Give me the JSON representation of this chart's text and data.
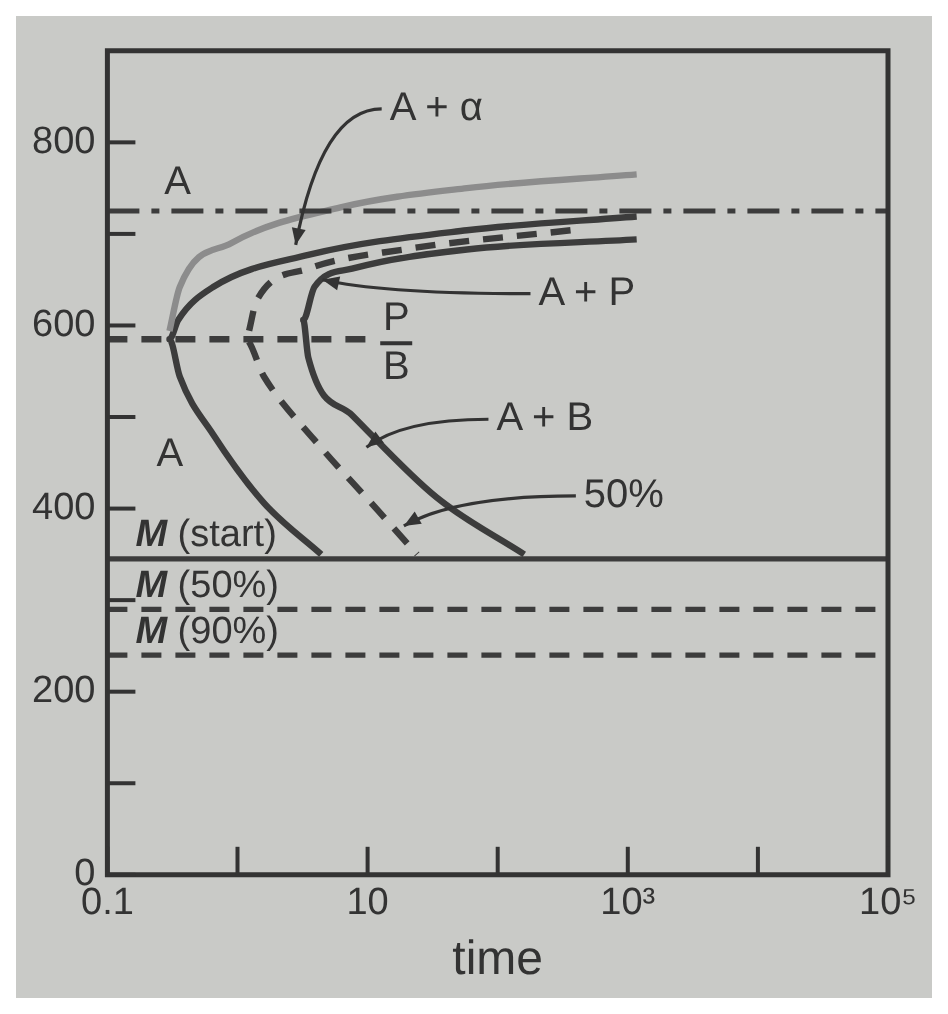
{
  "chart_data": {
    "type": "line",
    "xlabel": "time",
    "log": "x",
    "grid": false,
    "legend": false,
    "marker": "none",
    "xlim": [
      0.1,
      100000
    ],
    "ylim": [
      0,
      900
    ],
    "xticks": [
      0.1,
      {
        "value": 1,
        "label": null
      },
      10,
      {
        "value": 100,
        "label": null
      },
      {
        "value": 1000,
        "label": "10³"
      },
      {
        "value": 10000,
        "label": null
      },
      {
        "value": 100000,
        "label": "10⁵"
      }
    ],
    "yticks": [
      0,
      {
        "value": 100,
        "label": null
      },
      200,
      {
        "value": 300,
        "label": null
      },
      400,
      {
        "value": 500,
        "label": null
      },
      600,
      {
        "value": 700,
        "label": null
      },
      800
    ],
    "series": [
      {
        "color": "#8c8c8c",
        "line_style": "solid",
        "x": [
          0.3,
          0.36,
          0.9,
          6.2,
          58,
          1170
        ],
        "values": [
          594,
          642,
          690,
          729,
          750,
          765
        ]
      },
      {
        "color": "#3c3c3c",
        "line_style": "solid",
        "x": [
          1170,
          58,
          3.5,
          0.65,
          0.35,
          0.3,
          0.36,
          0.65,
          1.6,
          4.4
        ],
        "values": [
          719,
          704,
          677,
          642,
          606,
          585,
          544,
          481,
          406,
          350
        ]
      },
      {
        "color": "#3c3c3c",
        "line_style": "dashed",
        "x": [
          363,
          19,
          3.5,
          1.4,
          1.15,
          1.6,
          3.9,
          12,
          24
        ],
        "values": [
          704,
          683,
          662,
          627,
          585,
          544,
          475,
          398,
          350
        ]
      },
      {
        "color": "#3c3c3c",
        "line_style": "solid",
        "x": [
          1170,
          58,
          7.6,
          3.9,
          3.2,
          3.5,
          7.6,
          34,
          160
        ],
        "values": [
          694,
          683,
          662,
          642,
          606,
          565,
          502,
          412,
          350
        ]
      },
      {
        "color": "#3c3c3c",
        "line_style": "dashed",
        "x": [
          0.1,
          10
        ],
        "values": [
          585,
          585
        ]
      }
    ],
    "ref_lines": [
      {
        "axis": "y",
        "value": 725,
        "line_style": "dashdot",
        "color": "#3c3c3c"
      },
      {
        "axis": "y",
        "value": 345,
        "line_style": "solid",
        "color": "#3c3c3c",
        "label": "M (start)"
      },
      {
        "axis": "y",
        "value": 290,
        "line_style": "dashed",
        "color": "#3c3c3c",
        "label": "M (50%)"
      },
      {
        "axis": "y",
        "value": 240,
        "line_style": "dashed",
        "color": "#3c3c3c",
        "label": "M (90%)"
      }
    ],
    "annotations": [
      "A",
      "A",
      "P",
      "B",
      {
        "text": "A + α",
        "x": 2.8,
        "y": 688
      },
      {
        "text": "A + P",
        "x": 4.5,
        "y": 650
      },
      {
        "text": "A + B",
        "x": 9.8,
        "y": 467
      },
      {
        "text": "50%",
        "x": 19,
        "y": 381
      }
    ]
  }
}
